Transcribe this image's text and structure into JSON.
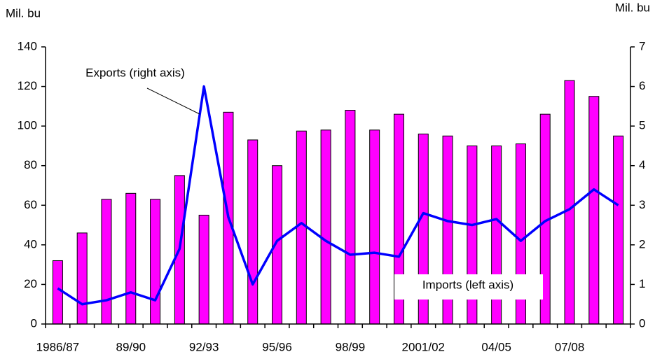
{
  "chart_data": {
    "type": "bar-line",
    "y_label": "Mil. bu",
    "y2_label": "Mil. bu",
    "categories": [
      "1986/87",
      null,
      null,
      "89/90",
      null,
      null,
      "92/93",
      null,
      null,
      "95/96",
      null,
      null,
      "98/99",
      null,
      null,
      "2001/02",
      null,
      null,
      "04/05",
      null,
      null,
      "07/08",
      null,
      null
    ],
    "series": [
      {
        "name": "Imports (left axis)",
        "type": "bar",
        "color": "#ff00ff",
        "values": [
          32,
          46,
          63,
          66,
          63,
          75,
          55,
          107,
          93,
          80,
          97.5,
          98,
          108,
          98,
          106,
          96,
          95,
          90,
          90,
          91,
          106,
          123,
          115,
          95
        ]
      },
      {
        "name": "Exports (right axis)",
        "type": "line",
        "axis": "y2",
        "color": "#0000ff",
        "values": [
          0.9,
          0.5,
          0.6,
          0.8,
          0.6,
          1.9,
          6.0,
          2.7,
          1.0,
          2.1,
          2.55,
          2.1,
          1.75,
          1.8,
          1.7,
          2.8,
          2.6,
          2.5,
          2.65,
          2.1,
          2.6,
          2.9,
          3.4,
          3.0
        ]
      }
    ],
    "ylim": [
      0,
      140
    ],
    "yticks": [
      0,
      20,
      40,
      60,
      80,
      100,
      120,
      140
    ],
    "y2lim": [
      0,
      7
    ],
    "y2ticks": [
      0,
      1,
      2,
      3,
      4,
      5,
      6,
      7
    ]
  }
}
